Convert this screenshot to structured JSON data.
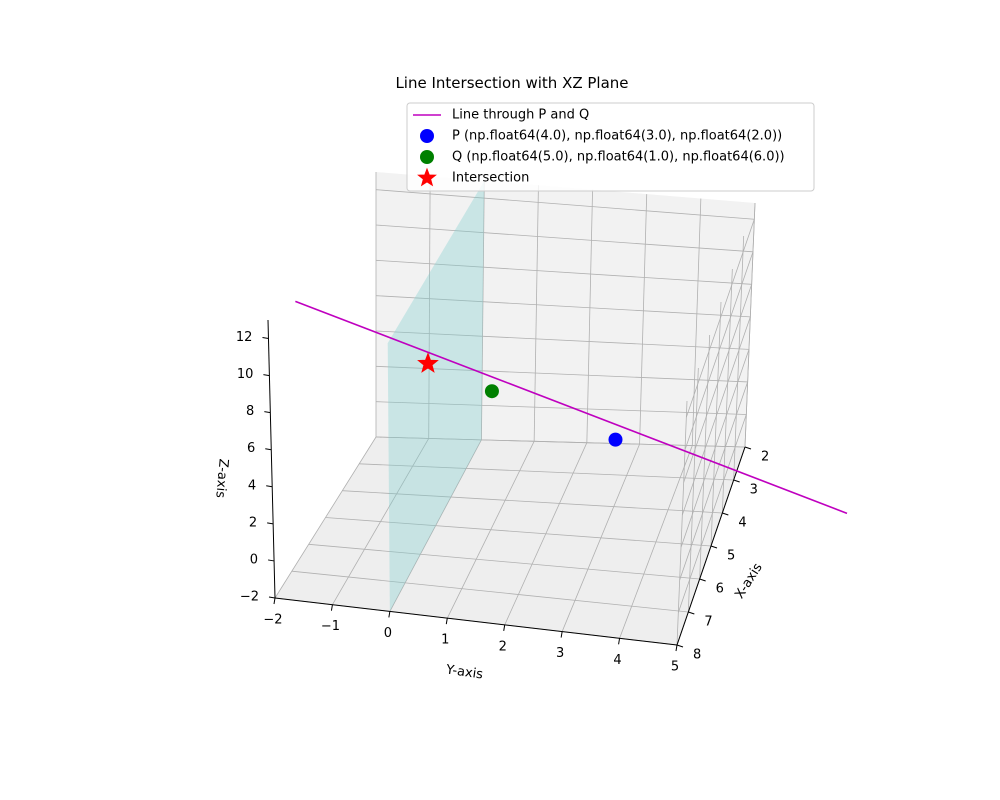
{
  "chart_data": {
    "type": "line3d",
    "title": "Line Intersection with XZ Plane",
    "xlabel": "X-axis",
    "ylabel": "Y-axis",
    "zlabel": "Z-axis",
    "xlim": [
      2,
      8
    ],
    "ylim": [
      -2,
      5
    ],
    "zlim": [
      -2,
      13
    ],
    "xticks": [
      "2",
      "3",
      "4",
      "5",
      "6",
      "7",
      "8"
    ],
    "yticks": [
      "−2",
      "−1",
      "0",
      "1",
      "2",
      "3",
      "4",
      "5"
    ],
    "zticks": [
      "−2",
      "0",
      "2",
      "4",
      "6",
      "8",
      "10",
      "12"
    ],
    "line": {
      "name": "Line through P and Q",
      "color": "#bf00bf",
      "t_range": [
        -2,
        2.5
      ]
    },
    "points": [
      {
        "name": "P (np.float64(4.0), np.float64(3.0), np.float64(2.0))",
        "x": 4.0,
        "y": 3.0,
        "z": 2.0,
        "color": "#0000ff",
        "marker": "circle"
      },
      {
        "name": "Q (np.float64(5.0), np.float64(1.0), np.float64(6.0))",
        "x": 5.0,
        "y": 1.0,
        "z": 6.0,
        "color": "#008000",
        "marker": "circle"
      },
      {
        "name": "Intersection",
        "x": 5.5,
        "y": 0.0,
        "z": 8.0,
        "color": "#ff0000",
        "marker": "star"
      }
    ],
    "plane": {
      "type": "xz",
      "y": 0,
      "color": "#7fcfcf",
      "x_range": [
        2,
        8
      ],
      "z_range": [
        -2,
        13
      ]
    },
    "legend_loc": "upper right",
    "grid": true
  }
}
